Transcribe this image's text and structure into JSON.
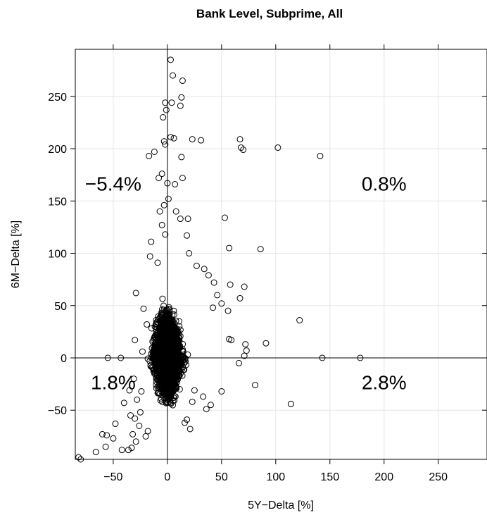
{
  "chart_data": {
    "type": "scatter",
    "title": "Bank Level, Subprime, All",
    "xlabel": "5Y−Delta [%]",
    "ylabel": "6M−Delta [%]",
    "xlim": [
      -85,
      295
    ],
    "ylim": [
      -97,
      295
    ],
    "x_ticks": [
      -50,
      0,
      50,
      100,
      150,
      200,
      250
    ],
    "x_tick_labels": [
      "−50",
      "0",
      "50",
      "100",
      "150",
      "200",
      "250"
    ],
    "y_ticks": [
      -50,
      0,
      50,
      100,
      150,
      200,
      250
    ],
    "y_tick_labels": [
      "−50",
      "0",
      "50",
      "100",
      "150",
      "200",
      "250"
    ],
    "grid": true,
    "reference_lines": {
      "x": 0,
      "y": 0
    },
    "marker": "open-circle",
    "marker_color": "#000000",
    "quadrant_labels": [
      {
        "text": "−5.4%",
        "x": -50,
        "y": 160
      },
      {
        "text": "0.8%",
        "x": 200,
        "y": 160
      },
      {
        "text": "1.8%",
        "x": -50,
        "y": -30
      },
      {
        "text": "2.8%",
        "x": 200,
        "y": -30
      }
    ],
    "outliers": [
      [
        3,
        285
      ],
      [
        5,
        270
      ],
      [
        14,
        265
      ],
      [
        13,
        249
      ],
      [
        4,
        244
      ],
      [
        -2,
        244
      ],
      [
        12,
        241
      ],
      [
        -4,
        230
      ],
      [
        -1,
        237
      ],
      [
        -3,
        207
      ],
      [
        -2,
        204
      ],
      [
        3,
        211
      ],
      [
        6,
        210
      ],
      [
        23,
        209
      ],
      [
        31,
        208
      ],
      [
        67,
        209
      ],
      [
        68,
        201
      ],
      [
        70,
        199
      ],
      [
        102,
        201
      ],
      [
        141,
        193
      ],
      [
        -17,
        193
      ],
      [
        -12,
        197
      ],
      [
        13,
        192
      ],
      [
        -8,
        172
      ],
      [
        -5,
        176
      ],
      [
        0,
        167
      ],
      [
        7,
        166
      ],
      [
        14,
        172
      ],
      [
        1,
        152
      ],
      [
        -3,
        146
      ],
      [
        8,
        140
      ],
      [
        12,
        133
      ],
      [
        19,
        133
      ],
      [
        53,
        134
      ],
      [
        -7,
        140
      ],
      [
        -15,
        111
      ],
      [
        -5,
        127
      ],
      [
        -2,
        118
      ],
      [
        18,
        117
      ],
      [
        57,
        105
      ],
      [
        86,
        104
      ],
      [
        -16,
        97
      ],
      [
        -9,
        91
      ],
      [
        20,
        100
      ],
      [
        27,
        88
      ],
      [
        34,
        85
      ],
      [
        38,
        79
      ],
      [
        43,
        72
      ],
      [
        58,
        70
      ],
      [
        71,
        68
      ],
      [
        67,
        57
      ],
      [
        56,
        45
      ],
      [
        46,
        60
      ],
      [
        50,
        52
      ],
      [
        42,
        48
      ],
      [
        122,
        36
      ],
      [
        91,
        14
      ],
      [
        72,
        13
      ],
      [
        73,
        7
      ],
      [
        57,
        18
      ],
      [
        59,
        17
      ],
      [
        66,
        -5
      ],
      [
        71,
        2
      ],
      [
        143,
        0
      ],
      [
        178,
        0
      ],
      [
        -55,
        0
      ],
      [
        -43,
        0
      ],
      [
        -30,
        17
      ],
      [
        -23,
        6
      ],
      [
        -29,
        62
      ],
      [
        -22,
        47
      ],
      [
        -19,
        32
      ],
      [
        81,
        -26
      ],
      [
        114,
        -44
      ],
      [
        50,
        -32
      ],
      [
        40,
        -45
      ],
      [
        36,
        -49
      ],
      [
        33,
        -37
      ],
      [
        25,
        -31
      ],
      [
        23,
        -42
      ],
      [
        18,
        -59
      ],
      [
        21,
        -68
      ],
      [
        16,
        -62
      ],
      [
        -80,
        -97
      ],
      [
        -82,
        -95
      ],
      [
        -66,
        -90
      ],
      [
        -57,
        -85
      ],
      [
        -50,
        -77
      ],
      [
        -48,
        -63
      ],
      [
        -60,
        -73
      ],
      [
        -56,
        -74
      ],
      [
        -42,
        -88
      ],
      [
        -36,
        -88
      ],
      [
        -32,
        -73
      ],
      [
        -33,
        -86
      ],
      [
        -30,
        -58
      ],
      [
        -34,
        -55
      ],
      [
        -25,
        -52
      ],
      [
        -40,
        -43
      ],
      [
        -26,
        -65
      ],
      [
        -29,
        -80
      ],
      [
        -20,
        -75
      ],
      [
        -18,
        -70
      ],
      [
        -24,
        -32
      ],
      [
        -31,
        -20
      ],
      [
        -35,
        -31
      ],
      [
        -28,
        -40
      ]
    ],
    "core": {
      "description": "dense cloud of 3000 observations centred near (0, 0)",
      "count": 3000,
      "x_range": [
        -25,
        25
      ],
      "y_range": [
        -75,
        90
      ]
    }
  }
}
